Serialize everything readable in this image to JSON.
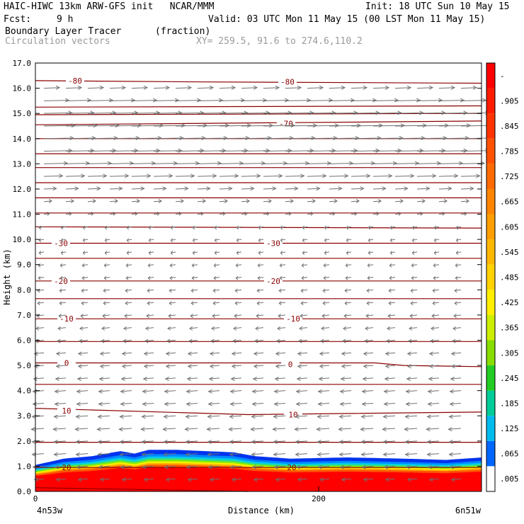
{
  "header": {
    "line1_left": "HAIC-HIWC 13km ARW-GFS init   NCAR/MMM",
    "line1_right": "Init: 18 UTC Sun 10 May 15",
    "fcst_label": "Fcst:",
    "fcst_value": "9 h",
    "valid": "Valid: 03 UTC Mon 11 May 15 (00 LST Mon 11 May 15)",
    "field": "Boundary Layer Tracer",
    "field_units": "(fraction)",
    "vectors": "Circulation vectors",
    "xy": "XY= 259.5, 91.6 to 274.6,110.2"
  },
  "chart_data": {
    "type": "heatmap",
    "ylabel": "Height (km)",
    "xlabel": "Distance (km)",
    "ylim": [
      0,
      17
    ],
    "xlim": [
      0,
      315
    ],
    "y_ticks": [
      "0.0",
      "1.0",
      "2.0",
      "3.0",
      "4.0",
      "5.0",
      "6.0",
      "7.0",
      "8.0",
      "9.0",
      "10.0",
      "11.0",
      "12.0",
      "13.0",
      "14.0",
      "15.0",
      "16.0",
      "17.0"
    ],
    "x_ticks": [
      {
        "value": 0,
        "label": "0"
      },
      {
        "value": 200,
        "label": "200"
      }
    ],
    "x_end_labels": {
      "left": "4n53w",
      "right": "6n51w"
    },
    "colorbar": {
      "labels": [
        "-",
        ".905",
        ".845",
        ".785",
        ".725",
        ".665",
        ".605",
        ".545",
        ".485",
        ".425",
        ".365",
        ".305",
        ".245",
        ".185",
        ".125",
        ".065",
        ".005"
      ],
      "colors": [
        "#ff0000",
        "#ff1a00",
        "#ff3300",
        "#ff5000",
        "#ff6a00",
        "#ff8400",
        "#ff9e00",
        "#ffb800",
        "#ffd200",
        "#ffee00",
        "#ccee00",
        "#88dd00",
        "#22cc22",
        "#00cc99",
        "#00bbee",
        "#0066ff",
        "#ffffff"
      ]
    },
    "tracer_top_km": [
      {
        "x": 0,
        "top": 1.05
      },
      {
        "x": 20,
        "top": 1.3
      },
      {
        "x": 40,
        "top": 1.4
      },
      {
        "x": 60,
        "top": 1.6
      },
      {
        "x": 70,
        "top": 1.5
      },
      {
        "x": 80,
        "top": 1.65
      },
      {
        "x": 100,
        "top": 1.65
      },
      {
        "x": 120,
        "top": 1.6
      },
      {
        "x": 140,
        "top": 1.55
      },
      {
        "x": 155,
        "top": 1.4
      },
      {
        "x": 180,
        "top": 1.3
      },
      {
        "x": 220,
        "top": 1.35
      },
      {
        "x": 260,
        "top": 1.3
      },
      {
        "x": 290,
        "top": 1.25
      },
      {
        "x": 315,
        "top": 1.35
      }
    ],
    "temperature_contours": [
      {
        "label": "-80",
        "pts": [
          [
            0,
            16.3
          ],
          [
            120,
            16.25
          ],
          [
            315,
            16.2
          ]
        ]
      },
      {
        "label": "",
        "pts": [
          [
            0,
            15.25
          ],
          [
            315,
            15.3
          ]
        ]
      },
      {
        "label": "",
        "pts": [
          [
            0,
            14.95
          ],
          [
            315,
            15.0
          ]
        ]
      },
      {
        "label": "-70",
        "pts": [
          [
            0,
            14.55
          ],
          [
            315,
            14.7
          ]
        ]
      },
      {
        "label": "",
        "pts": [
          [
            0,
            14.0
          ],
          [
            315,
            14.0
          ]
        ]
      },
      {
        "label": "",
        "pts": [
          [
            0,
            13.4
          ],
          [
            315,
            13.4
          ]
        ]
      },
      {
        "label": "",
        "pts": [
          [
            0,
            12.85
          ],
          [
            315,
            12.85
          ]
        ]
      },
      {
        "label": "",
        "pts": [
          [
            0,
            12.25
          ],
          [
            315,
            12.25
          ]
        ]
      },
      {
        "label": "",
        "pts": [
          [
            0,
            11.65
          ],
          [
            315,
            11.65
          ]
        ]
      },
      {
        "label": "",
        "pts": [
          [
            0,
            11.05
          ],
          [
            315,
            11.05
          ]
        ]
      },
      {
        "label": "",
        "pts": [
          [
            0,
            10.5
          ],
          [
            315,
            10.45
          ]
        ]
      },
      {
        "label": "-30",
        "pts": [
          [
            0,
            9.85
          ],
          [
            315,
            9.85
          ]
        ]
      },
      {
        "label": "",
        "pts": [
          [
            0,
            9.25
          ],
          [
            315,
            9.25
          ]
        ]
      },
      {
        "label": "-20",
        "pts": [
          [
            0,
            8.35
          ],
          [
            315,
            8.35
          ]
        ]
      },
      {
        "label": "",
        "pts": [
          [
            0,
            7.65
          ],
          [
            315,
            7.65
          ]
        ]
      },
      {
        "label": "-10",
        "pts": [
          [
            0,
            6.85
          ],
          [
            315,
            6.85
          ]
        ]
      },
      {
        "label": "",
        "pts": [
          [
            0,
            5.95
          ],
          [
            315,
            5.95
          ]
        ]
      },
      {
        "label": "0",
        "pts": [
          [
            0,
            5.1
          ],
          [
            240,
            5.1
          ],
          [
            260,
            5.0
          ],
          [
            315,
            4.95
          ]
        ]
      },
      {
        "label": "",
        "pts": [
          [
            0,
            4.25
          ],
          [
            315,
            4.25
          ]
        ]
      },
      {
        "label": "10",
        "pts": [
          [
            0,
            3.3
          ],
          [
            150,
            3.05
          ],
          [
            315,
            3.15
          ]
        ]
      },
      {
        "label": "",
        "pts": [
          [
            0,
            1.95
          ],
          [
            315,
            1.95
          ]
        ]
      },
      {
        "label": "20",
        "pts": [
          [
            0,
            0.95
          ],
          [
            315,
            0.95
          ]
        ]
      },
      {
        "label": "",
        "pts": [
          [
            0,
            0.15
          ],
          [
            150,
            0.0
          ]
        ]
      }
    ],
    "contour_labels": [
      {
        "text": "-80",
        "x": 28,
        "y": 16.3
      },
      {
        "text": "-80",
        "x": 178,
        "y": 16.25
      },
      {
        "text": "-70",
        "x": 177,
        "y": 14.6
      },
      {
        "text": "-30",
        "x": 18,
        "y": 9.85
      },
      {
        "text": "-30",
        "x": 168,
        "y": 9.85
      },
      {
        "text": "-20",
        "x": 18,
        "y": 8.35
      },
      {
        "text": "-20",
        "x": 168,
        "y": 8.35
      },
      {
        "text": "-10",
        "x": 22,
        "y": 6.85
      },
      {
        "text": "-10",
        "x": 182,
        "y": 6.85
      },
      {
        "text": "0",
        "x": 22,
        "y": 5.1
      },
      {
        "text": "0",
        "x": 180,
        "y": 5.05
      },
      {
        "text": "10",
        "x": 22,
        "y": 3.2
      },
      {
        "text": "10",
        "x": 182,
        "y": 3.05
      },
      {
        "text": "20",
        "x": 22,
        "y": 0.95
      },
      {
        "text": "20",
        "x": 181,
        "y": 0.95
      }
    ],
    "wind_levels": [
      {
        "z": 16.0,
        "u": 1.0,
        "dir": 1
      },
      {
        "z": 15.5,
        "u": 1.6,
        "dir": 1
      },
      {
        "z": 15.0,
        "u": 1.8,
        "dir": 1
      },
      {
        "z": 14.5,
        "u": 2.0,
        "dir": 1
      },
      {
        "z": 14.0,
        "u": 1.9,
        "dir": 1
      },
      {
        "z": 13.5,
        "u": 1.8,
        "dir": 1
      },
      {
        "z": 13.0,
        "u": 1.5,
        "dir": 1
      },
      {
        "z": 12.5,
        "u": 1.2,
        "dir": 1
      },
      {
        "z": 12.0,
        "u": 0.8,
        "dir": 1
      },
      {
        "z": 11.5,
        "u": 0.5,
        "dir": 1
      },
      {
        "z": 11.0,
        "u": 0.35,
        "dir": 1
      },
      {
        "z": 10.5,
        "u": 0.3,
        "dir": -1
      },
      {
        "z": 10.0,
        "u": 0.3,
        "dir": -1
      },
      {
        "z": 9.5,
        "u": 0.3,
        "dir": -1
      },
      {
        "z": 9.0,
        "u": 0.35,
        "dir": -1
      },
      {
        "z": 8.5,
        "u": 0.35,
        "dir": -1
      },
      {
        "z": 8.0,
        "u": 0.4,
        "dir": -1
      },
      {
        "z": 7.5,
        "u": 0.4,
        "dir": -1
      },
      {
        "z": 7.0,
        "u": 0.45,
        "dir": -1
      },
      {
        "z": 6.5,
        "u": 0.5,
        "dir": -1
      },
      {
        "z": 6.0,
        "u": 0.55,
        "dir": -1
      },
      {
        "z": 5.5,
        "u": 0.6,
        "dir": -1
      },
      {
        "z": 5.0,
        "u": 0.6,
        "dir": -1
      },
      {
        "z": 4.5,
        "u": 0.65,
        "dir": -1
      },
      {
        "z": 4.0,
        "u": 0.7,
        "dir": -1
      },
      {
        "z": 3.5,
        "u": 0.7,
        "dir": -1
      },
      {
        "z": 3.0,
        "u": 0.75,
        "dir": -1
      },
      {
        "z": 2.5,
        "u": 0.8,
        "dir": -1
      },
      {
        "z": 2.0,
        "u": 0.75,
        "dir": -1
      },
      {
        "z": 1.5,
        "u": 0.75,
        "dir": -1
      },
      {
        "z": 1.0,
        "u": 0.7,
        "dir": -1
      },
      {
        "z": 0.5,
        "u": 0.6,
        "dir": -1
      }
    ]
  }
}
